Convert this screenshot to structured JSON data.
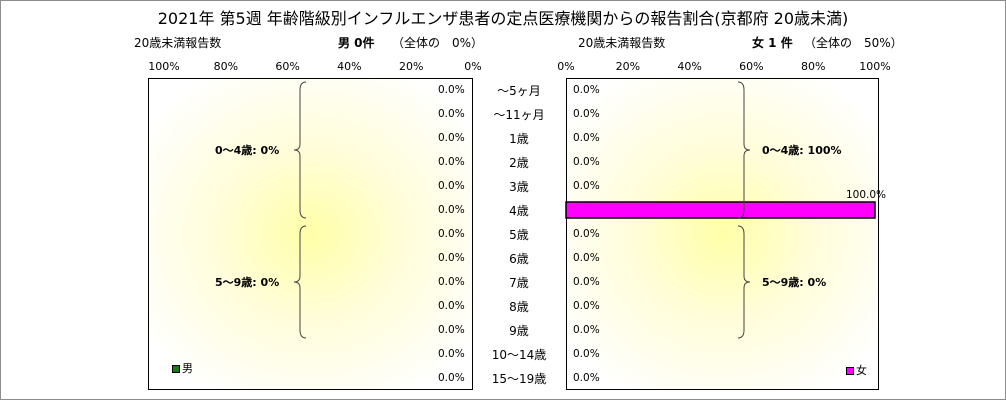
{
  "title": "2021年 第5週 年齢階級別インフルエンザ患者の定点医療機関からの報告割合(京都府 20歳未満)",
  "colors": {
    "male": "#1a7a1a",
    "female": "#ff00ff",
    "bar_border": "#000000"
  },
  "chart_data": {
    "type": "bar",
    "orientation": "horizontal-pyramid",
    "categories": [
      "～5ヶ月",
      "～11ヶ月",
      "1歳",
      "2歳",
      "3歳",
      "4歳",
      "5歳",
      "6歳",
      "7歳",
      "8歳",
      "9歳",
      "10～14歳",
      "15～19歳"
    ],
    "xlim": [
      0,
      100
    ],
    "left": {
      "caption": "20歳未満報告数",
      "count_label": "男 0件",
      "share_label": "（全体の　0%）",
      "ticks": [
        "100%",
        "80%",
        "60%",
        "40%",
        "20%",
        "0%"
      ],
      "legend": "男",
      "values": [
        0,
        0,
        0,
        0,
        0,
        0,
        0,
        0,
        0,
        0,
        0,
        0,
        0
      ],
      "value_labels": [
        "0.0%",
        "0.0%",
        "0.0%",
        "0.0%",
        "0.0%",
        "0.0%",
        "0.0%",
        "0.0%",
        "0.0%",
        "0.0%",
        "0.0%",
        "0.0%",
        "0.0%"
      ],
      "groups": [
        {
          "label": "0～4歳: 0%",
          "from": 0,
          "to": 5
        },
        {
          "label": "5～9歳: 0%",
          "from": 6,
          "to": 10
        }
      ]
    },
    "right": {
      "caption": "20歳未満報告数",
      "count_label": "女 1 件",
      "share_label": "（全体の　50%）",
      "ticks": [
        "0%",
        "20%",
        "40%",
        "60%",
        "80%",
        "100%"
      ],
      "legend": "女",
      "values": [
        0,
        0,
        0,
        0,
        0,
        100,
        0,
        0,
        0,
        0,
        0,
        0,
        0
      ],
      "value_labels": [
        "0.0%",
        "0.0%",
        "0.0%",
        "0.0%",
        "0.0%",
        "100.0%",
        "0.0%",
        "0.0%",
        "0.0%",
        "0.0%",
        "0.0%",
        "0.0%",
        "0.0%"
      ],
      "groups": [
        {
          "label": "0～4歳: 100%",
          "from": 0,
          "to": 5
        },
        {
          "label": "5～9歳: 0%",
          "from": 6,
          "to": 10
        }
      ]
    }
  }
}
